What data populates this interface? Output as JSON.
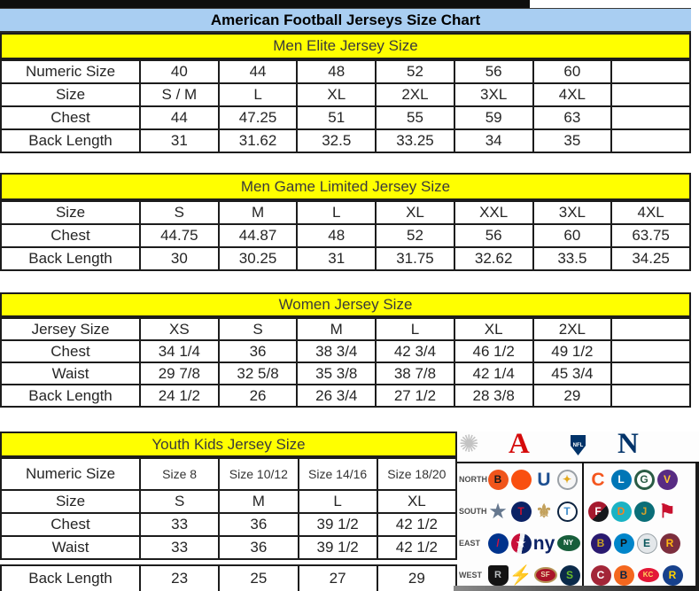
{
  "page_title": "American Football Jerseys Size Chart",
  "colors": {
    "title_bg": "#a9cef2",
    "band_bg": "#ffff00",
    "border": "#1c1c1c",
    "afc_red": "#d50a0a",
    "nfc_blue": "#013369"
  },
  "tables": [
    {
      "header": "Men Elite Jersey Size",
      "rows": [
        {
          "label": "Numeric Size",
          "cells": [
            "40",
            "44",
            "48",
            "52",
            "56",
            "60",
            ""
          ]
        },
        {
          "label": "Size",
          "cells": [
            "S / M",
            "L",
            "XL",
            "2XL",
            "3XL",
            "4XL",
            ""
          ]
        },
        {
          "label": "Chest",
          "cells": [
            "44",
            "47.25",
            "51",
            "55",
            "59",
            "63",
            ""
          ]
        },
        {
          "label": "Back Length",
          "cells": [
            "31",
            "31.62",
            "32.5",
            "33.25",
            "34",
            "35",
            ""
          ]
        }
      ]
    },
    {
      "header": "Men Game Limited Jersey Size",
      "rows": [
        {
          "label": "Size",
          "cells": [
            "S",
            "M",
            "L",
            "XL",
            "XXL",
            "3XL",
            "4XL"
          ]
        },
        {
          "label": "Chest",
          "cells": [
            "44.75",
            "44.87",
            "48",
            "52",
            "56",
            "60",
            "63.75"
          ]
        },
        {
          "label": "Back Length",
          "cells": [
            "30",
            "30.25",
            "31",
            "31.75",
            "32.62",
            "33.5",
            "34.25"
          ]
        }
      ]
    },
    {
      "header": "Women Jersey Size",
      "rows": [
        {
          "label": "Jersey Size",
          "cells": [
            "XS",
            "S",
            "M",
            "L",
            "XL",
            "2XL",
            ""
          ]
        },
        {
          "label": "Chest",
          "cells": [
            "34 1/4",
            "36",
            "38 3/4",
            "42 3/4",
            "46 1/2",
            "49 1/2",
            ""
          ]
        },
        {
          "label": "Waist",
          "cells": [
            "29 7/8",
            "32 5/8",
            "35 3/8",
            "38 7/8",
            "42 1/4",
            "45 3/4",
            ""
          ]
        },
        {
          "label": "Back Length",
          "cells": [
            "24 1/2",
            "26",
            "26 3/4",
            "27 1/2",
            "28 3/8",
            "29",
            ""
          ]
        }
      ]
    },
    {
      "header": "Youth Kids Jersey Size",
      "rows": [
        {
          "label": "Numeric Size",
          "cells": [
            "Size 8",
            "Size 10/12",
            "Size 14/16",
            "Size 18/20"
          ]
        },
        {
          "label": "Size",
          "cells": [
            "S",
            "M",
            "L",
            "XL"
          ]
        },
        {
          "label": "Chest",
          "cells": [
            "33",
            "36",
            "39 1/2",
            "42 1/2"
          ]
        },
        {
          "label": "Waist",
          "cells": [
            "33",
            "36",
            "39 1/2",
            "42 1/2"
          ]
        },
        {
          "label": "Back Length",
          "cells": [
            "23",
            "25",
            "27",
            "29"
          ]
        }
      ]
    }
  ],
  "nfl_panel": {
    "starburst_glyph": "✺",
    "afc_letter": "A",
    "shield_text": "NFL",
    "nfc_letter": "N",
    "divisions": [
      {
        "label": "NORTH",
        "afc": [
          {
            "name": "bengals",
            "glyph": "B",
            "shape": "circle",
            "bg": "#f0551c",
            "fg": "#181818",
            "border": ""
          },
          {
            "name": "browns",
            "glyph": "",
            "shape": "circle",
            "bg": "#f94f10",
            "fg": "#ffffff",
            "border": ""
          },
          {
            "name": "colts",
            "glyph": "U",
            "shape": "glyph",
            "bg": "",
            "fg": "#1d4f91",
            "border": ""
          },
          {
            "name": "steelers",
            "glyph": "✦",
            "shape": "circle",
            "bg": "#f6f6f6",
            "fg": "#e3a81c",
            "border": "2px solid #9aa0a6"
          }
        ],
        "nfc": [
          {
            "name": "bears",
            "glyph": "C",
            "shape": "glyph",
            "bg": "",
            "fg": "#f4561e",
            "border": ""
          },
          {
            "name": "lions",
            "glyph": "L",
            "shape": "circle",
            "bg": "#0076b6",
            "fg": "#ffffff",
            "border": ""
          },
          {
            "name": "packers",
            "glyph": "G",
            "shape": "circle",
            "bg": "#ffffff",
            "fg": "#2a5c45",
            "border": "3px solid #2a5c45"
          },
          {
            "name": "vikings",
            "glyph": "V",
            "shape": "circle",
            "bg": "#582c83",
            "fg": "#ffc62f",
            "border": ""
          }
        ]
      },
      {
        "label": "SOUTH",
        "afc": [
          {
            "name": "cowboys",
            "glyph": "★",
            "shape": "glyph",
            "bg": "",
            "fg": "#66788f",
            "border": ""
          },
          {
            "name": "texans",
            "glyph": "T",
            "shape": "circle",
            "bg": "#0b2265",
            "fg": "#c41230",
            "border": ""
          },
          {
            "name": "saints",
            "glyph": "⚜",
            "shape": "glyph",
            "bg": "",
            "fg": "#c3a15c",
            "border": ""
          },
          {
            "name": "titans",
            "glyph": "T",
            "shape": "circle",
            "bg": "#ffffff",
            "fg": "#3f8ccc",
            "border": "2px solid #0c2340"
          }
        ],
        "nfc": [
          {
            "name": "falcons",
            "glyph": "F",
            "shape": "circle",
            "bg": "linear-gradient(135deg,#a6192e 55%,#16181c 55%)",
            "fg": "#ffffff",
            "border": ""
          },
          {
            "name": "dolphins",
            "glyph": "D",
            "shape": "circle",
            "bg": "#1bb3c4",
            "fg": "#f58220",
            "border": ""
          },
          {
            "name": "jaguars",
            "glyph": "J",
            "shape": "circle",
            "bg": "#0a6e78",
            "fg": "#d7a22a",
            "border": ""
          },
          {
            "name": "buccaneers",
            "glyph": "⚑",
            "shape": "glyph",
            "bg": "",
            "fg": "#c8102e",
            "border": ""
          }
        ]
      },
      {
        "label": "EAST",
        "afc": [
          {
            "name": "bills",
            "glyph": "/",
            "shape": "circle",
            "bg": "#00338d",
            "fg": "#d6113e",
            "border": ""
          },
          {
            "name": "patriots",
            "glyph": "★",
            "shape": "circle",
            "bg": "linear-gradient(100deg,#c8103a 38%,#eef1f4 38% 58%,#0b2265 58%)",
            "fg": "#ffffff",
            "border": ""
          },
          {
            "name": "giants",
            "glyph": "ny",
            "shape": "glyph",
            "bg": "",
            "fg": "#0b2265",
            "border": ""
          },
          {
            "name": "jets",
            "glyph": "NY",
            "shape": "oval",
            "bg": "#175e3b",
            "fg": "#ffffff",
            "border": ""
          }
        ],
        "nfc": [
          {
            "name": "ravens",
            "glyph": "B",
            "shape": "circle",
            "bg": "#2a1a70",
            "fg": "#c9a227",
            "border": ""
          },
          {
            "name": "panthers",
            "glyph": "P",
            "shape": "circle",
            "bg": "#0085ca",
            "fg": "#111111",
            "border": ""
          },
          {
            "name": "eagles",
            "glyph": "E",
            "shape": "circle",
            "bg": "#e3e7ea",
            "fg": "#09565c",
            "border": "1px solid #9aa3a8"
          },
          {
            "name": "redskins",
            "glyph": "R",
            "shape": "circle",
            "bg": "#7c2e3e",
            "fg": "#ffb612",
            "border": ""
          }
        ]
      },
      {
        "label": "WEST",
        "afc": [
          {
            "name": "raiders",
            "glyph": "R",
            "shape": "shield",
            "bg": "#131313",
            "fg": "#b9bdbf",
            "border": ""
          },
          {
            "name": "chargers",
            "glyph": "⚡",
            "shape": "glyph",
            "bg": "",
            "fg": "#f3c110",
            "border": ""
          },
          {
            "name": "49ers",
            "glyph": "SF",
            "shape": "oval",
            "bg": "#aa1428",
            "fg": "#efdcb2",
            "border": "2px solid #b59457"
          },
          {
            "name": "seahawks",
            "glyph": "S",
            "shape": "circle",
            "bg": "#0b2a4a",
            "fg": "#69be28",
            "border": ""
          }
        ],
        "nfc": [
          {
            "name": "cardinals",
            "glyph": "C",
            "shape": "circle",
            "bg": "#a32638",
            "fg": "#ffffff",
            "border": ""
          },
          {
            "name": "broncos",
            "glyph": "B",
            "shape": "circle",
            "bg": "#f4671e",
            "fg": "#0a2343",
            "border": ""
          },
          {
            "name": "chiefs",
            "glyph": "KC",
            "shape": "oval",
            "bg": "#e31837",
            "fg": "#ffd65c",
            "border": "1px solid #ffffff"
          },
          {
            "name": "rams",
            "glyph": "R",
            "shape": "circle",
            "bg": "#17418c",
            "fg": "#ffd100",
            "border": ""
          }
        ]
      }
    ]
  }
}
